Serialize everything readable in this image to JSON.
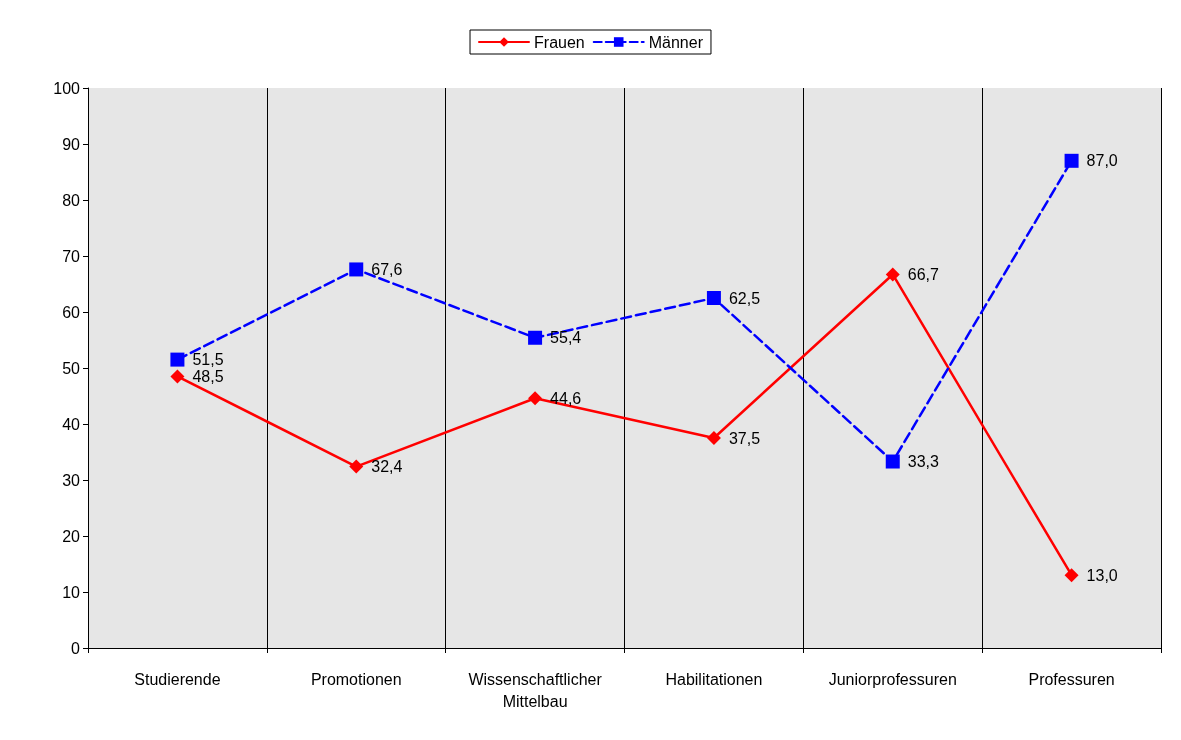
{
  "chart_data": {
    "type": "line",
    "categories": [
      "Studierende",
      "Promotionen",
      "Wissenschaftlicher\nMittelbau",
      "Habilitationen",
      "Juniorprofessuren",
      "Professuren"
    ],
    "series": [
      {
        "name": "Frauen",
        "color": "#ff0000",
        "values": [
          48.5,
          32.4,
          44.6,
          37.5,
          66.7,
          13.0
        ],
        "value_labels": [
          "48,5",
          "32,4",
          "44,6",
          "37,5",
          "66,7",
          "13,0"
        ],
        "marker": "diamond",
        "line_style": "solid"
      },
      {
        "name": "Männer",
        "color": "#0000ff",
        "values": [
          51.5,
          67.6,
          55.4,
          62.5,
          33.3,
          87.0
        ],
        "value_labels": [
          "51,5",
          "67,6",
          "55,4",
          "62,5",
          "33,3",
          "87,0"
        ],
        "marker": "square",
        "line_style": "dashed"
      }
    ],
    "ylim": [
      0,
      100
    ],
    "yticks": [
      0,
      10,
      20,
      30,
      40,
      50,
      60,
      70,
      80,
      90,
      100
    ],
    "grid": "x",
    "legend": "top"
  }
}
